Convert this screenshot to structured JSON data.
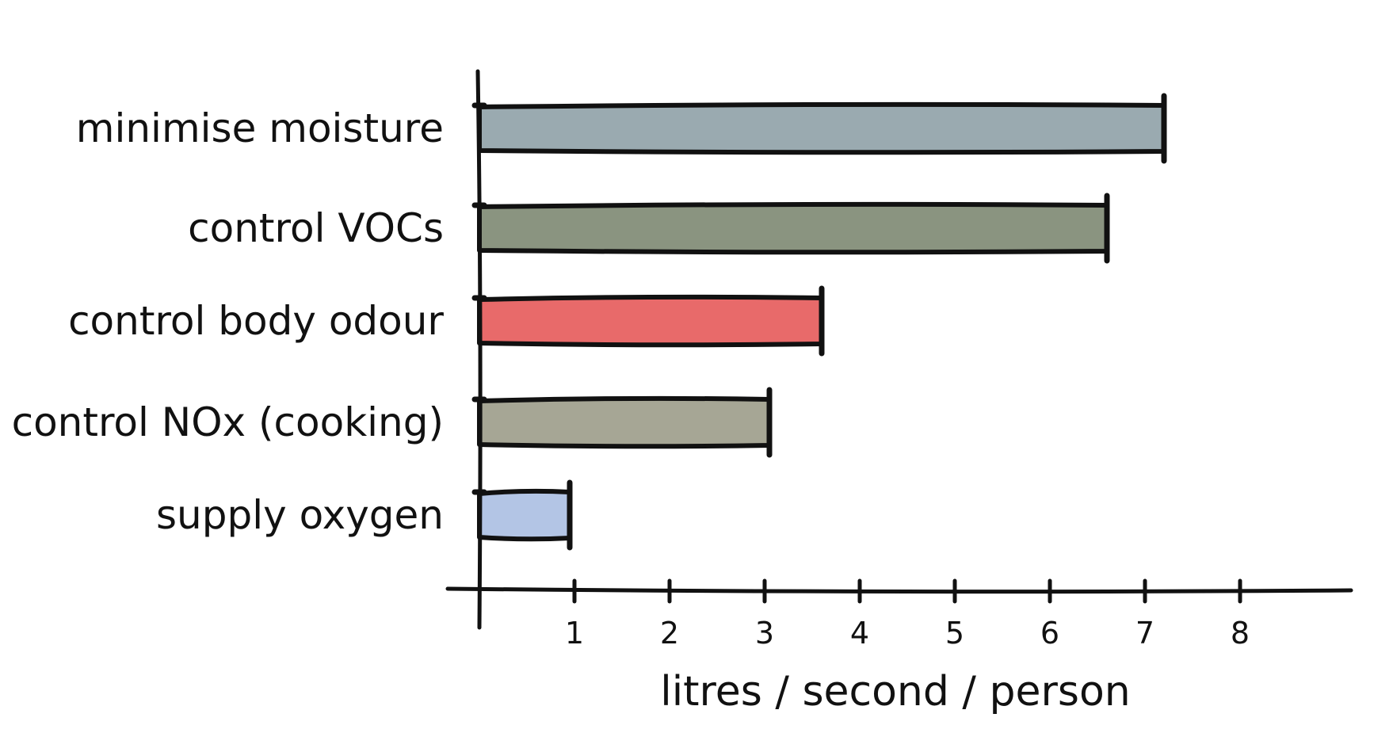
{
  "chart_data": {
    "type": "bar",
    "orientation": "horizontal",
    "categories": [
      "minimise moisture",
      "control VOCs",
      "control body odour",
      "control NOx (cooking)",
      "supply oxygen"
    ],
    "values": [
      7.2,
      6.6,
      3.6,
      3.05,
      0.95
    ],
    "colors": [
      "#9aaab0",
      "#8a9480",
      "#e86a6a",
      "#a6a695",
      "#b3c5e5"
    ],
    "xlabel": "litres / second / person",
    "xticks": [
      "1",
      "2",
      "3",
      "4",
      "5",
      "6",
      "7",
      "8"
    ],
    "xlim": [
      0,
      9
    ]
  }
}
